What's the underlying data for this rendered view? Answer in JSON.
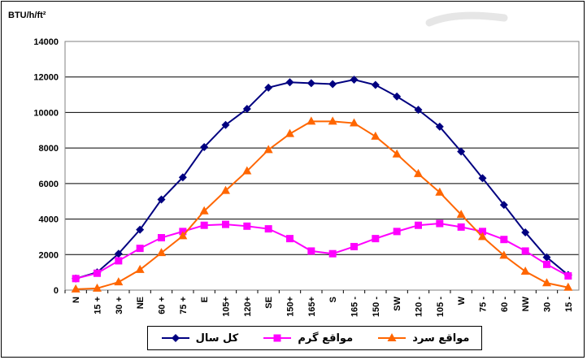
{
  "chart_data": {
    "type": "line",
    "ylabel": "BTU/h/ft²",
    "ylim": [
      0,
      14000
    ],
    "yticks": [
      0,
      2000,
      4000,
      6000,
      8000,
      10000,
      12000,
      14000
    ],
    "categories": [
      "N",
      "15 +",
      "30 +",
      "NE",
      "60 +",
      "75 +",
      "E",
      "105+",
      "120+",
      "SE",
      "150+",
      "165+",
      "S",
      "165 -",
      "150 -",
      "SW",
      "120 -",
      "105 -",
      "W",
      "75 -",
      "60 -",
      "NW",
      "30 -",
      "15 -"
    ],
    "grid": "horizontal",
    "legend_position": "bottom",
    "series": [
      {
        "name": "کل سال",
        "color": "#000080",
        "marker": "diamond",
        "values": [
          650,
          1000,
          2050,
          3400,
          5100,
          6350,
          8050,
          9300,
          10200,
          11400,
          11700,
          11650,
          11600,
          11850,
          11550,
          10900,
          10150,
          9200,
          7800,
          6300,
          4800,
          3250,
          1850,
          850
        ]
      },
      {
        "name": "مواقع گرم",
        "color": "#FF00FF",
        "marker": "square",
        "values": [
          650,
          950,
          1650,
          2350,
          2950,
          3300,
          3650,
          3700,
          3600,
          3450,
          2900,
          2200,
          2050,
          2450,
          2900,
          3300,
          3650,
          3750,
          3550,
          3300,
          2850,
          2200,
          1450,
          800
        ]
      },
      {
        "name": "مواقع سرد",
        "color": "#FF6600",
        "marker": "triangle",
        "values": [
          50,
          100,
          450,
          1150,
          2100,
          3050,
          4450,
          5600,
          6700,
          7900,
          8800,
          9500,
          9500,
          9400,
          8650,
          7650,
          6550,
          5500,
          4250,
          3000,
          1950,
          1050,
          400,
          150
        ]
      }
    ]
  }
}
